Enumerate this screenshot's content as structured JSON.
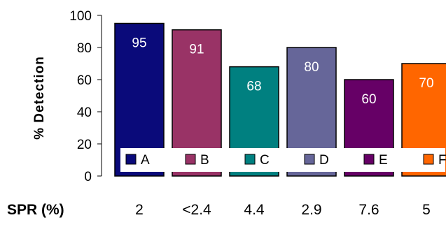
{
  "chart_data": {
    "type": "bar",
    "ylabel": "% Detection",
    "xlabel": "",
    "ylim": [
      0,
      100
    ],
    "yticks": [
      "0",
      "20",
      "40",
      "60",
      "80",
      "100"
    ],
    "categories": [
      "A",
      "B",
      "C",
      "D",
      "E",
      "F"
    ],
    "values": [
      95,
      91,
      68,
      80,
      60,
      70
    ],
    "data_labels": [
      "95",
      "91",
      "68",
      "80",
      "60",
      "70"
    ],
    "colors": [
      "#0a0a7a",
      "#993366",
      "#008080",
      "#666699",
      "#660066",
      "#ff6600"
    ],
    "legend_position": "bottom-inside"
  },
  "spr_row": {
    "label": "SPR (%)",
    "values": [
      "2",
      "<2.4",
      "4.4",
      "2.9",
      "7.6",
      "5"
    ]
  }
}
